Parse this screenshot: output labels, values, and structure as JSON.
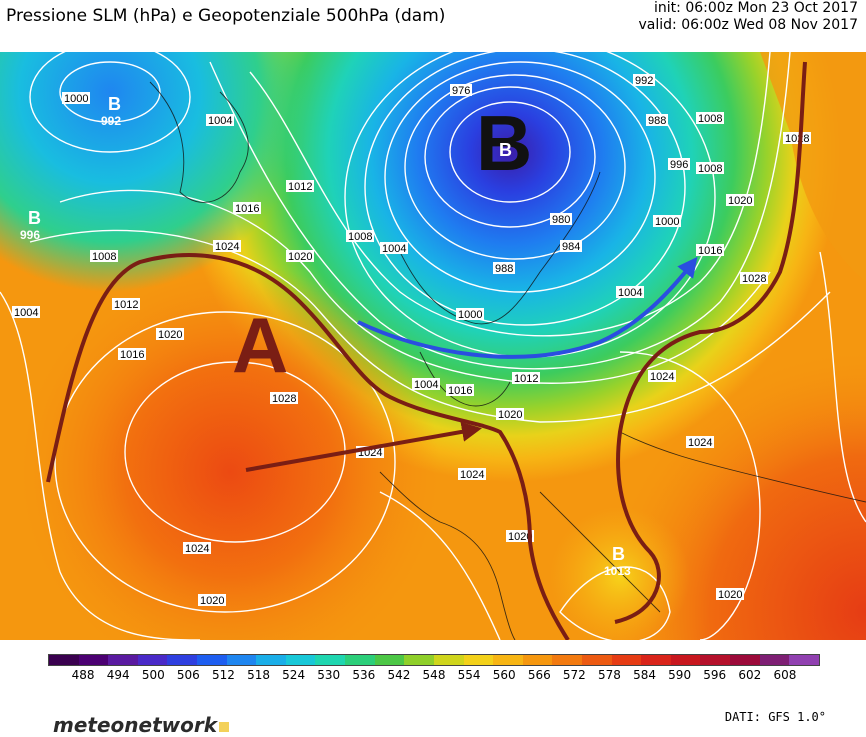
{
  "title": "Pressione SLM (hPa) e Geopotenziale 500hPa (dam)",
  "run": {
    "init": "init: 06:00z Mon 23 Oct 2017",
    "valid": "valid: 06:00z Wed 08 Nov 2017"
  },
  "pressure_centers": {
    "high_main": "A",
    "low_main": "B",
    "low_main_inner": "B",
    "low_nw": "B",
    "low_nw_value": "992",
    "low_w": "B",
    "low_w_value": "996",
    "low_med": "B",
    "low_med_value": "1013"
  },
  "isobar_labels": [
    "976",
    "992",
    "988",
    "1008",
    "996",
    "1000",
    "980",
    "984",
    "1008",
    "1020",
    "1016",
    "1004",
    "1016",
    "1024",
    "1012",
    "1000",
    "1004",
    "1008",
    "988",
    "1020",
    "1004",
    "1008",
    "1004",
    "1012",
    "1020",
    "1016",
    "1028",
    "1024",
    "1016",
    "1012",
    "1020",
    "1024",
    "1024",
    "1020",
    "1024",
    "1028",
    "1024",
    "1020",
    "1020",
    "1028",
    "1000",
    "1004"
  ],
  "colorbar": {
    "ticks": [
      "488",
      "494",
      "500",
      "506",
      "512",
      "518",
      "524",
      "530",
      "536",
      "542",
      "548",
      "554",
      "560",
      "566",
      "572",
      "578",
      "584",
      "590",
      "596",
      "602",
      "608"
    ],
    "colors": [
      "#3a004f",
      "#4b0072",
      "#5a1aa0",
      "#4a2ac8",
      "#2f3fe0",
      "#1e5ef0",
      "#1f86f0",
      "#1aaee8",
      "#19c8d8",
      "#1fd6b0",
      "#2ccf7a",
      "#4cc746",
      "#8fcf2a",
      "#cfd51c",
      "#f3d11a",
      "#f7b514",
      "#f5970f",
      "#f27a10",
      "#ec5a12",
      "#e63c14",
      "#d9241a",
      "#c8171e",
      "#b5112b",
      "#9c0a3a",
      "#7e1f74",
      "#9040b0"
    ]
  },
  "source": "DATI: GFS 1.0°",
  "brand": "meteonetwork"
}
